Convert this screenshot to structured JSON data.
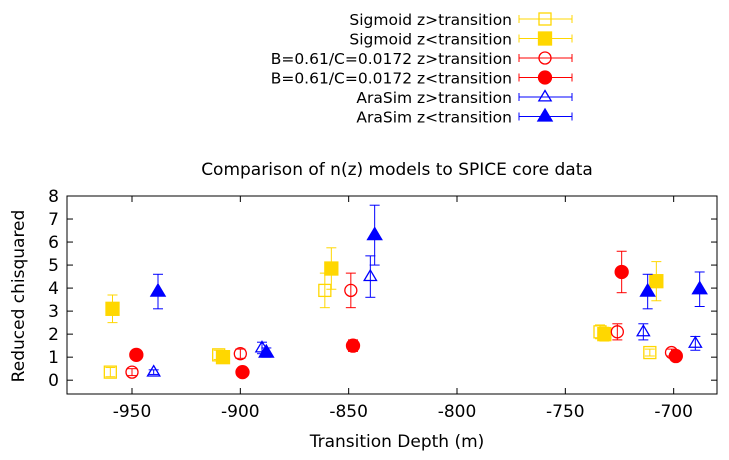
{
  "chart_data": {
    "type": "scatter",
    "title": "Comparison of n(z) models to SPICE core data",
    "xlabel": "Transition Depth (m)",
    "ylabel": "Reduced chisquared",
    "xlim": [
      -980,
      -680
    ],
    "ylim": [
      -0.6,
      8
    ],
    "xticks": [
      -950,
      -900,
      -850,
      -800,
      -750,
      -700
    ],
    "yticks": [
      0,
      1,
      2,
      3,
      4,
      5,
      6,
      7,
      8
    ],
    "grid": false,
    "legend_position": "top-center",
    "series": [
      {
        "name": "Sigmoid z>transition",
        "color": "#FFD700",
        "marker": "square-open",
        "points": [
          {
            "x": -960,
            "y": 0.35,
            "err": 0.2
          },
          {
            "x": -910,
            "y": 1.1,
            "err": 0.2
          },
          {
            "x": -861,
            "y": 3.9,
            "err": 0.75
          },
          {
            "x": -734,
            "y": 2.1,
            "err": 0.3
          },
          {
            "x": -711,
            "y": 1.2,
            "err": 0.15
          }
        ]
      },
      {
        "name": "Sigmoid z<transition",
        "color": "#FFD700",
        "marker": "square-filled",
        "points": [
          {
            "x": -959,
            "y": 3.1,
            "err": 0.6
          },
          {
            "x": -908,
            "y": 1.0,
            "err": 0.2
          },
          {
            "x": -858,
            "y": 4.85,
            "err": 0.9
          },
          {
            "x": -732,
            "y": 2.0,
            "err": 0.3
          },
          {
            "x": -708,
            "y": 4.3,
            "err": 0.85
          }
        ]
      },
      {
        "name": "B=0.61/C=0.0172 z>transition",
        "color": "#FF0000",
        "marker": "circle-open",
        "points": [
          {
            "x": -950,
            "y": 0.35,
            "err": 0.15
          },
          {
            "x": -900,
            "y": 1.15,
            "err": 0.2
          },
          {
            "x": -849,
            "y": 3.9,
            "err": 0.75
          },
          {
            "x": -726,
            "y": 2.1,
            "err": 0.35
          },
          {
            "x": -701,
            "y": 1.2,
            "err": 0.15
          }
        ]
      },
      {
        "name": "B=0.61/C=0.0172 z<transition",
        "color": "#FF0000",
        "marker": "circle-filled",
        "points": [
          {
            "x": -948,
            "y": 1.1,
            "err": 0.1
          },
          {
            "x": -899,
            "y": 0.35,
            "err": 0.1
          },
          {
            "x": -848,
            "y": 1.5,
            "err": 0.25
          },
          {
            "x": -724,
            "y": 4.7,
            "err": 0.9
          },
          {
            "x": -699,
            "y": 1.05,
            "err": 0.1
          }
        ]
      },
      {
        "name": "AraSim z>transition",
        "color": "#0000FF",
        "marker": "triangle-open",
        "points": [
          {
            "x": -940,
            "y": 0.35,
            "err": 0.1
          },
          {
            "x": -890,
            "y": 1.4,
            "err": 0.25
          },
          {
            "x": -840,
            "y": 4.5,
            "err": 0.9
          },
          {
            "x": -714,
            "y": 2.1,
            "err": 0.35
          },
          {
            "x": -690,
            "y": 1.6,
            "err": 0.3
          }
        ]
      },
      {
        "name": "AraSim z<transition",
        "color": "#0000FF",
        "marker": "triangle-filled",
        "points": [
          {
            "x": -938,
            "y": 3.85,
            "err": 0.75
          },
          {
            "x": -888,
            "y": 1.2,
            "err": 0.2
          },
          {
            "x": -838,
            "y": 6.3,
            "err": 1.3
          },
          {
            "x": -712,
            "y": 3.85,
            "err": 0.75
          },
          {
            "x": -688,
            "y": 3.95,
            "err": 0.75
          }
        ]
      }
    ]
  }
}
